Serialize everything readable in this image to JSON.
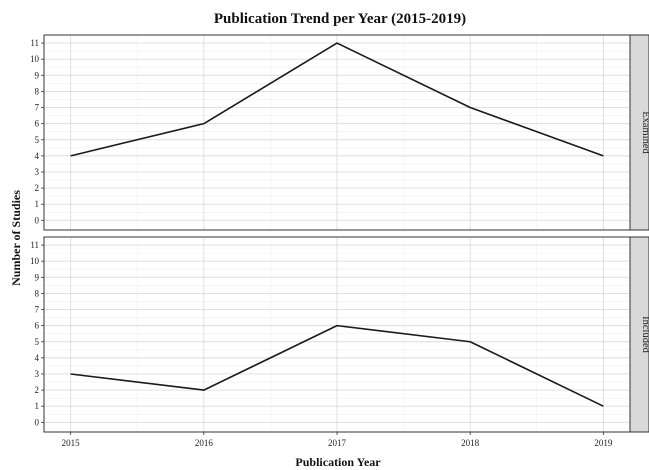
{
  "chart_data": {
    "type": "line",
    "title": "Publication Trend per Year (2015-2019)",
    "xlabel": "Publication Year",
    "ylabel": "Number of Studies",
    "x": [
      2015,
      2016,
      2017,
      2018,
      2019
    ],
    "x_tick_labels": [
      "2015",
      "2016",
      "2017",
      "2018",
      "2019"
    ],
    "ylim": [
      0,
      11
    ],
    "y_ticks": [
      0,
      1,
      2,
      3,
      4,
      5,
      6,
      7,
      8,
      9,
      10,
      11
    ],
    "y_tick_labels": [
      "0",
      "1",
      "2",
      "3",
      "4",
      "5",
      "6",
      "7",
      "8",
      "9",
      "10",
      "11"
    ],
    "grid": true,
    "facets": [
      {
        "label": "Examined",
        "values": [
          4,
          6,
          11,
          7,
          4
        ]
      },
      {
        "label": "Included",
        "values": [
          3,
          2,
          6,
          5,
          1
        ]
      }
    ]
  }
}
